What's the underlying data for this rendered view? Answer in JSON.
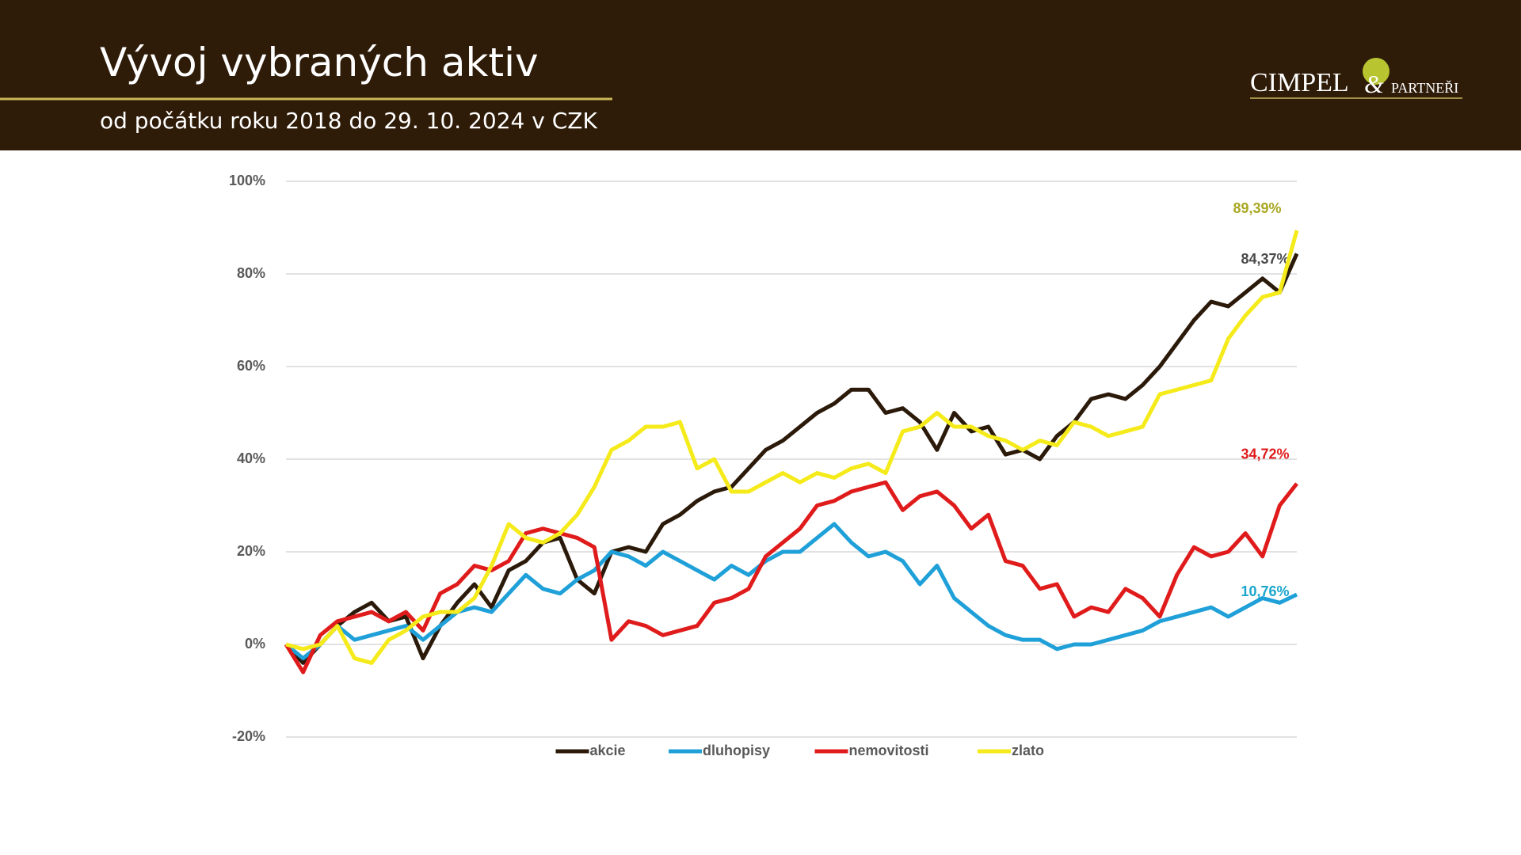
{
  "header": {
    "title": "Vývoj vybraných aktiv",
    "subtitle": "od počátku roku 2018 do 29. 10. 2024 v CZK",
    "logo": {
      "name": "CIMPEL",
      "amp": "&",
      "suffix": "PARTNEŘI"
    }
  },
  "chart_data": {
    "type": "line",
    "ylim": [
      -20,
      100
    ],
    "grid": true,
    "legend": "bottom",
    "yticks": [
      {
        "value": -20,
        "label": "-20%"
      },
      {
        "value": 0,
        "label": "0%"
      },
      {
        "value": 20,
        "label": "20%"
      },
      {
        "value": 40,
        "label": "40%"
      },
      {
        "value": 60,
        "label": "60%"
      },
      {
        "value": 80,
        "label": "80%"
      },
      {
        "value": 100,
        "label": "100%"
      }
    ],
    "series": [
      {
        "name": "akcie",
        "color": "#2b1a0a",
        "label_color": "#4a4a4a",
        "values": [
          0,
          -4,
          0,
          4,
          7,
          9,
          5,
          6,
          -3,
          4,
          9,
          13,
          8,
          16,
          18,
          22,
          23,
          14,
          11,
          20,
          21,
          20,
          26,
          28,
          31,
          33,
          34,
          38,
          42,
          44,
          47,
          50,
          52,
          55,
          55,
          50,
          51,
          48,
          42,
          50,
          46,
          47,
          41,
          42,
          40,
          45,
          48,
          53,
          54,
          53,
          56,
          60,
          65,
          70,
          74,
          73,
          76,
          79,
          76,
          84.37
        ],
        "value_labels": [
          null,
          null,
          null,
          null,
          null,
          null,
          null,
          null,
          null,
          null,
          null,
          null,
          null,
          null,
          null,
          null,
          null,
          null,
          null,
          null,
          null,
          null,
          null,
          null,
          null,
          null,
          null,
          null,
          null,
          null,
          null,
          null,
          null,
          null,
          null,
          null,
          null,
          null,
          null,
          null,
          null,
          null,
          null,
          null,
          null,
          null,
          null,
          null,
          null,
          null,
          null,
          null,
          null,
          null,
          null,
          null,
          null,
          null,
          null,
          "84,37%"
        ]
      },
      {
        "name": "dluhopisy",
        "color": "#1fa0d8",
        "label_color": "#1aa6cc",
        "values": [
          0,
          -3,
          0,
          4,
          1,
          2,
          3,
          4,
          1,
          4,
          7,
          8,
          7,
          11,
          15,
          12,
          11,
          14,
          16,
          20,
          19,
          17,
          20,
          18,
          16,
          14,
          17,
          15,
          18,
          20,
          20,
          23,
          26,
          22,
          19,
          20,
          18,
          13,
          17,
          10,
          7,
          4,
          2,
          1,
          1,
          -1,
          0,
          0,
          1,
          2,
          3,
          5,
          6,
          7,
          8,
          6,
          8,
          10,
          9,
          10.76
        ],
        "value_labels": [
          null,
          null,
          null,
          null,
          null,
          null,
          null,
          null,
          null,
          null,
          null,
          null,
          null,
          null,
          null,
          null,
          null,
          null,
          null,
          null,
          null,
          null,
          null,
          null,
          null,
          null,
          null,
          null,
          null,
          null,
          null,
          null,
          null,
          null,
          null,
          null,
          null,
          null,
          null,
          null,
          null,
          null,
          null,
          null,
          null,
          null,
          null,
          null,
          null,
          null,
          null,
          null,
          null,
          null,
          null,
          null,
          null,
          null,
          null,
          "10,76%"
        ]
      },
      {
        "name": "nemovitosti",
        "color": "#e01b1b",
        "label_color": "#e01b1b",
        "values": [
          0,
          -6,
          2,
          5,
          6,
          7,
          5,
          7,
          3,
          11,
          13,
          17,
          16,
          18,
          24,
          25,
          24,
          23,
          21,
          1,
          5,
          4,
          2,
          3,
          4,
          9,
          10,
          12,
          19,
          22,
          25,
          30,
          31,
          33,
          34,
          35,
          29,
          32,
          33,
          30,
          25,
          28,
          18,
          17,
          12,
          13,
          6,
          8,
          7,
          12,
          10,
          6,
          15,
          21,
          19,
          20,
          24,
          19,
          30,
          34.72
        ],
        "value_labels": [
          null,
          null,
          null,
          null,
          null,
          null,
          null,
          null,
          null,
          null,
          null,
          null,
          null,
          null,
          null,
          null,
          null,
          null,
          null,
          null,
          null,
          null,
          null,
          null,
          null,
          null,
          null,
          null,
          null,
          null,
          null,
          null,
          null,
          null,
          null,
          null,
          null,
          null,
          null,
          null,
          null,
          null,
          null,
          null,
          null,
          null,
          null,
          null,
          null,
          null,
          null,
          null,
          null,
          null,
          null,
          null,
          null,
          null,
          null,
          "34,72%"
        ]
      },
      {
        "name": "zlato",
        "color": "#f5ea1a",
        "label_color": "#a9a823",
        "values": [
          0,
          -1,
          0,
          4,
          -3,
          -4,
          1,
          3,
          6,
          7,
          7,
          10,
          17,
          26,
          23,
          22,
          24,
          28,
          34,
          42,
          44,
          47,
          47,
          48,
          38,
          40,
          33,
          33,
          35,
          37,
          35,
          37,
          36,
          38,
          39,
          37,
          46,
          47,
          50,
          47,
          47,
          45,
          44,
          42,
          44,
          43,
          48,
          47,
          45,
          46,
          47,
          54,
          55,
          56,
          57,
          66,
          71,
          75,
          76,
          89.39
        ],
        "value_labels": [
          null,
          null,
          null,
          null,
          null,
          null,
          null,
          null,
          null,
          null,
          null,
          null,
          null,
          null,
          null,
          null,
          null,
          null,
          null,
          null,
          null,
          null,
          null,
          null,
          null,
          null,
          null,
          null,
          null,
          null,
          null,
          null,
          null,
          null,
          null,
          null,
          null,
          null,
          null,
          null,
          null,
          null,
          null,
          null,
          null,
          null,
          null,
          null,
          null,
          null,
          null,
          null,
          null,
          null,
          null,
          null,
          null,
          null,
          null,
          "89,39%"
        ]
      }
    ]
  }
}
